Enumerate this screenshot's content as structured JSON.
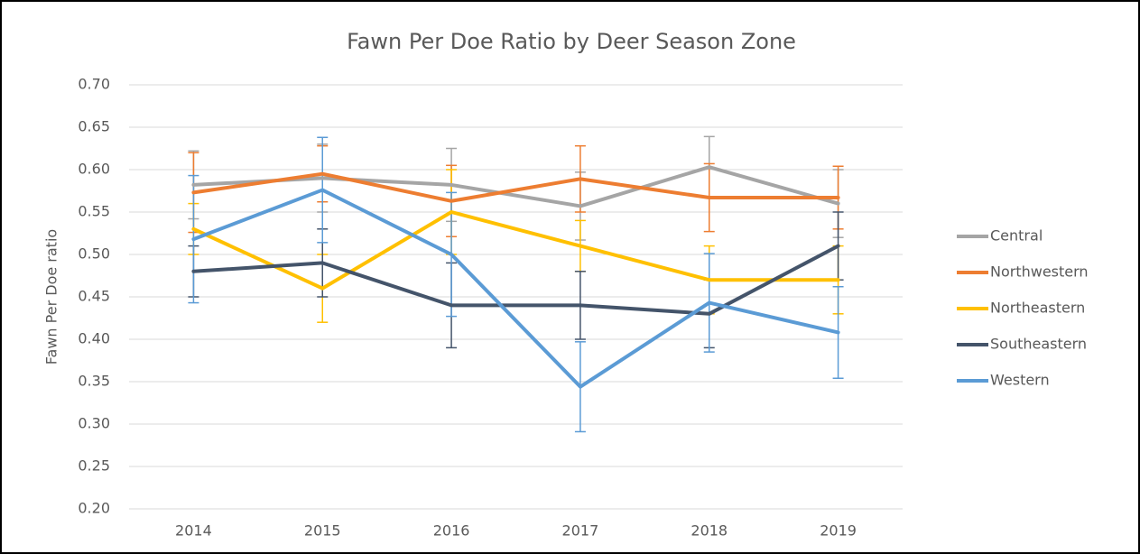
{
  "chart_data": {
    "type": "line",
    "title": "Fawn Per Doe Ratio by Deer Season Zone",
    "y_label": "Fawn Per Doe ratio",
    "categories": [
      "2014",
      "2015",
      "2016",
      "2017",
      "2018",
      "2019"
    ],
    "series": [
      {
        "name": "Central",
        "color": "#a5a5a5",
        "values": [
          0.582,
          0.59,
          0.582,
          0.557,
          0.603,
          0.56
        ],
        "errors": [
          0.04,
          0.04,
          0.043,
          0.04,
          0.036,
          0.04
        ]
      },
      {
        "name": "Northwestern",
        "color": "#ed7d31",
        "values": [
          0.573,
          0.595,
          0.563,
          0.589,
          0.567,
          0.567
        ],
        "errors": [
          0.047,
          0.033,
          0.042,
          0.039,
          0.04,
          0.037
        ]
      },
      {
        "name": "Northeastern",
        "color": "#ffc000",
        "values": [
          0.53,
          0.46,
          0.55,
          0.51,
          0.47,
          0.47
        ],
        "errors": [
          0.03,
          0.04,
          0.05,
          0.03,
          0.04,
          0.04
        ]
      },
      {
        "name": "Southeastern",
        "color": "#44546a",
        "values": [
          0.48,
          0.49,
          0.44,
          0.44,
          0.43,
          0.51
        ],
        "errors": [
          0.03,
          0.04,
          0.05,
          0.04,
          0.04,
          0.04
        ]
      },
      {
        "name": "Western",
        "color": "#5b9bd5",
        "values": [
          0.518,
          0.576,
          0.5,
          0.344,
          0.443,
          0.408
        ],
        "errors": [
          0.075,
          0.062,
          0.073,
          0.053,
          0.058,
          0.054
        ]
      }
    ],
    "ylim": [
      0.2,
      0.7
    ],
    "yticks": [
      {
        "value": 0.2,
        "label": "0.20"
      },
      {
        "value": 0.25,
        "label": "0.25"
      },
      {
        "value": 0.3,
        "label": "0.30"
      },
      {
        "value": 0.35,
        "label": "0.35"
      },
      {
        "value": 0.4,
        "label": "0.40"
      },
      {
        "value": 0.45,
        "label": "0.45"
      },
      {
        "value": 0.5,
        "label": "0.50"
      },
      {
        "value": 0.55,
        "label": "0.55"
      },
      {
        "value": 0.6,
        "label": "0.60"
      },
      {
        "value": 0.65,
        "label": "0.65"
      },
      {
        "value": 0.7,
        "label": "0.70"
      }
    ],
    "grid": true,
    "legend": "right"
  }
}
